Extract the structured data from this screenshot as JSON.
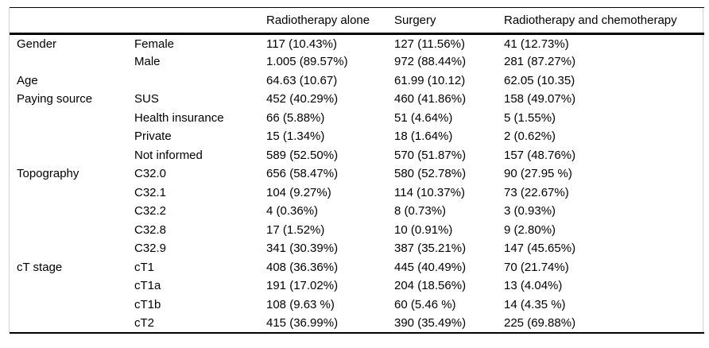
{
  "table": {
    "header": {
      "col1": "",
      "col2": "",
      "col3": "Radiotherapy alone",
      "col4": "Surgery",
      "col5": "Radiotherapy and chemotherapy"
    },
    "rows": [
      {
        "group": "Gender",
        "label": "Female",
        "radiotherapy_alone": "117 (10.43%)",
        "surgery": "127 (11.56%)",
        "radiotherapy_chemotherapy": "41 (12.73%)"
      },
      {
        "group": "",
        "label": "Male",
        "radiotherapy_alone": "1.005 (89.57%)",
        "surgery": "972 (88.44%)",
        "radiotherapy_chemotherapy": "281 (87.27%)"
      },
      {
        "group": "Age",
        "label": "",
        "radiotherapy_alone": "64.63 (10.67)",
        "surgery": "61.99 (10.12)",
        "radiotherapy_chemotherapy": "62.05 (10.35)"
      },
      {
        "group": "Paying source",
        "label": "SUS",
        "radiotherapy_alone": "452 (40.29%)",
        "surgery": "460 (41.86%)",
        "radiotherapy_chemotherapy": "158 (49.07%)"
      },
      {
        "group": "",
        "label": "Health insurance",
        "radiotherapy_alone": "66 (5.88%)",
        "surgery": "51 (4.64%)",
        "radiotherapy_chemotherapy": "5 (1.55%)"
      },
      {
        "group": "",
        "label": "Private",
        "radiotherapy_alone": "15 (1.34%)",
        "surgery": "18 (1.64%)",
        "radiotherapy_chemotherapy": "2 (0.62%)"
      },
      {
        "group": "",
        "label": "Not informed",
        "radiotherapy_alone": "589 (52.50%)",
        "surgery": "570 (51.87%)",
        "radiotherapy_chemotherapy": "157 (48.76%)"
      },
      {
        "group": "Topography",
        "label": "C32.0",
        "radiotherapy_alone": "656 (58.47%)",
        "surgery": "580 (52.78%)",
        "radiotherapy_chemotherapy": "90 (27.95 %)"
      },
      {
        "group": "",
        "label": "C32.1",
        "radiotherapy_alone": "104 (9.27%)",
        "surgery": "114 (10.37%)",
        "radiotherapy_chemotherapy": "73 (22.67%)"
      },
      {
        "group": "",
        "label": "C32.2",
        "radiotherapy_alone": "4 (0.36%)",
        "surgery": "8 (0.73%)",
        "radiotherapy_chemotherapy": "3 (0.93%)"
      },
      {
        "group": "",
        "label": "C32.8",
        "radiotherapy_alone": "17 (1.52%)",
        "surgery": "10 (0.91%)",
        "radiotherapy_chemotherapy": "9 (2.80%)"
      },
      {
        "group": "",
        "label": "C32.9",
        "radiotherapy_alone": "341 (30.39%)",
        "surgery": "387 (35.21%)",
        "radiotherapy_chemotherapy": "147 (45.65%)"
      },
      {
        "group": "cT stage",
        "label": "cT1",
        "radiotherapy_alone": "408 (36.36%)",
        "surgery": "445 (40.49%)",
        "radiotherapy_chemotherapy": "70 (21.74%)"
      },
      {
        "group": "",
        "label": "cT1a",
        "radiotherapy_alone": "191 (17.02%)",
        "surgery": "204 (18.56%)",
        "radiotherapy_chemotherapy": "13 (4.04%)"
      },
      {
        "group": "",
        "label": "cT1b",
        "radiotherapy_alone": "108 (9.63 %)",
        "surgery": "60 (5.46 %)",
        "radiotherapy_chemotherapy": "14 (4.35 %)"
      },
      {
        "group": "",
        "label": "cT2",
        "radiotherapy_alone": "415 (36.99%)",
        "surgery": "390 (35.49%)",
        "radiotherapy_chemotherapy": "225 (69.88%)"
      }
    ]
  },
  "colors": {
    "rule": "#000000",
    "frame": "#d2d2d2",
    "text": "#000000",
    "background": "#ffffff"
  }
}
